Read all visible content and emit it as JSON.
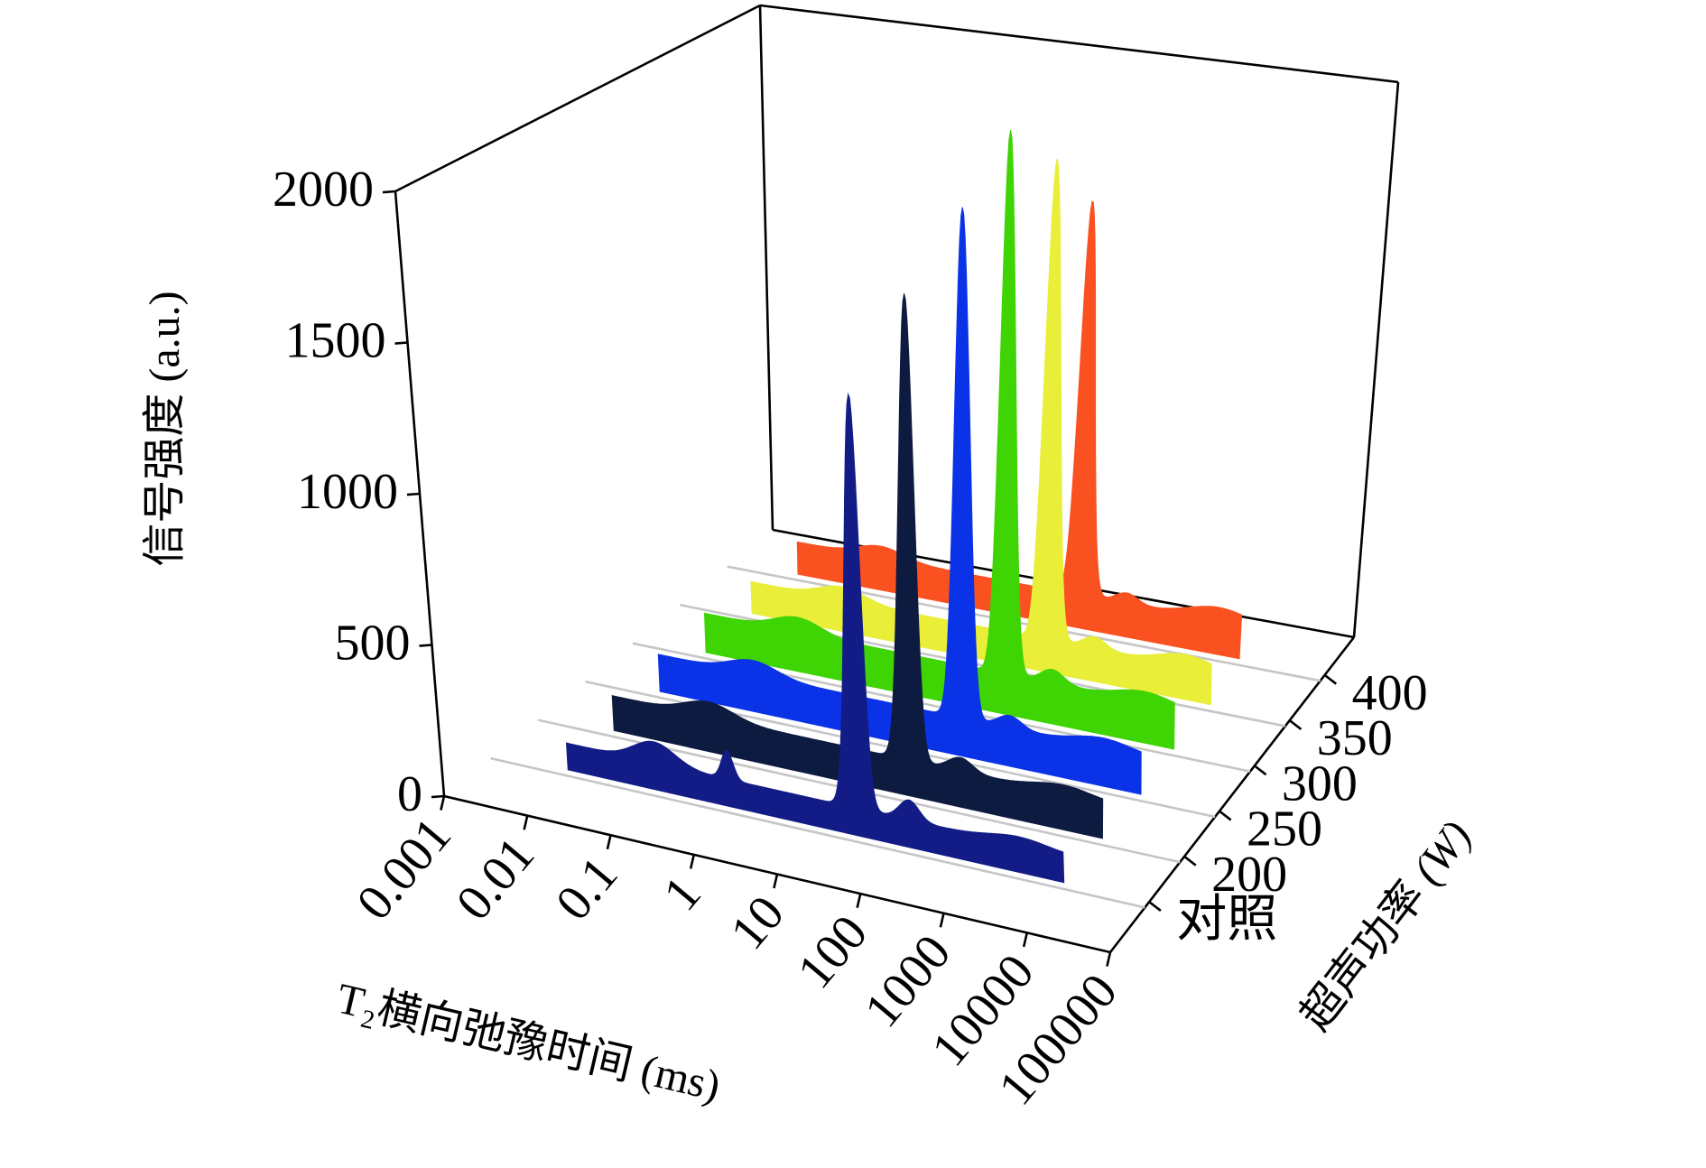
{
  "figure": {
    "background": "#ffffff",
    "frame_color": "#000000",
    "grid_color": "#c6c6c6",
    "text_color": "#000000"
  },
  "chart_data": {
    "type": "area",
    "projection": "3d-waterfall",
    "title": "",
    "grid": true,
    "x_axis": {
      "title": "T₂横向弛豫时间 (ms)",
      "scale": "log",
      "range_ms": [
        0.001,
        100000
      ],
      "tick_labels": [
        "0.001",
        "0.01",
        "0.1",
        "1",
        "10",
        "100",
        "1000",
        "10000",
        "100000"
      ]
    },
    "y_axis": {
      "title": "信号强度 (a.u.)",
      "range": [
        0,
        2000
      ],
      "tick_labels": [
        "0",
        "500",
        "1000",
        "1500",
        "2000"
      ]
    },
    "z_axis": {
      "title": "超声功率",
      "unit": "(W)",
      "tick_labels": [
        "对照",
        "200",
        "250",
        "300",
        "350",
        "400"
      ]
    },
    "series": [
      {
        "label": "对照",
        "color": "#131c86",
        "peak_t2_ms": 26,
        "peak_intensity": 1450,
        "profile": {
          "base": 90,
          "start_ms": 0.0075,
          "end_ms": 9000,
          "bumps": [
            [
              0.09,
              70,
              0.25
            ],
            [
              0.7,
              95,
              0.07
            ],
            [
              26,
              1360,
              0.09
            ],
            [
              115,
              65,
              0.12
            ],
            [
              2500,
              25,
              0.35
            ]
          ]
        }
      },
      {
        "label": "200",
        "color": "#0e1b40",
        "peak_t2_ms": 36,
        "peak_intensity": 1680,
        "profile": {
          "base": 120,
          "start_ms": 0.0075,
          "end_ms": 9500,
          "bumps": [
            [
              0.12,
              50,
              0.3
            ],
            [
              36,
              1560,
              0.09
            ],
            [
              160,
              45,
              0.15
            ],
            [
              3000,
              28,
              0.35
            ]
          ]
        }
      },
      {
        "label": "250",
        "color": "#0a33e8",
        "peak_t2_ms": 52,
        "peak_intensity": 1870,
        "profile": {
          "base": 130,
          "start_ms": 0.0075,
          "end_ms": 10000,
          "bumps": [
            [
              0.12,
              48,
              0.3
            ],
            [
              52,
              1740,
              0.09
            ],
            [
              210,
              42,
              0.15
            ],
            [
              3200,
              32,
              0.35
            ]
          ]
        }
      },
      {
        "label": "300",
        "color": "#3fd404",
        "peak_t2_ms": 56,
        "peak_intensity": 2030,
        "profile": {
          "base": 140,
          "start_ms": 0.0075,
          "end_ms": 9000,
          "bumps": [
            [
              0.12,
              52,
              0.3
            ],
            [
              56,
              1890,
              0.09
            ],
            [
              230,
              48,
              0.15
            ],
            [
              3500,
              36,
              0.35
            ]
          ]
        }
      },
      {
        "label": "350",
        "color": "#e9ee38",
        "peak_t2_ms": 60,
        "peak_intensity": 1820,
        "profile": {
          "base": 115,
          "start_ms": 0.0075,
          "end_ms": 9000,
          "bumps": [
            [
              0.12,
              46,
              0.3
            ],
            [
              60,
              1705,
              0.095
            ],
            [
              250,
              42,
              0.15
            ],
            [
              4000,
              42,
              0.35
            ]
          ]
        }
      },
      {
        "label": "400",
        "color": "#fa5120",
        "peak_t2_ms": 49,
        "peak_intensity": 1550,
        "profile": {
          "base": 120,
          "start_ms": 0.0075,
          "end_ms": 7000,
          "bumps": [
            [
              0.1,
              42,
              0.3
            ],
            [
              49,
              1430,
              0.095
            ],
            [
              200,
              38,
              0.15
            ],
            [
              3500,
              48,
              0.4
            ]
          ]
        }
      }
    ]
  }
}
